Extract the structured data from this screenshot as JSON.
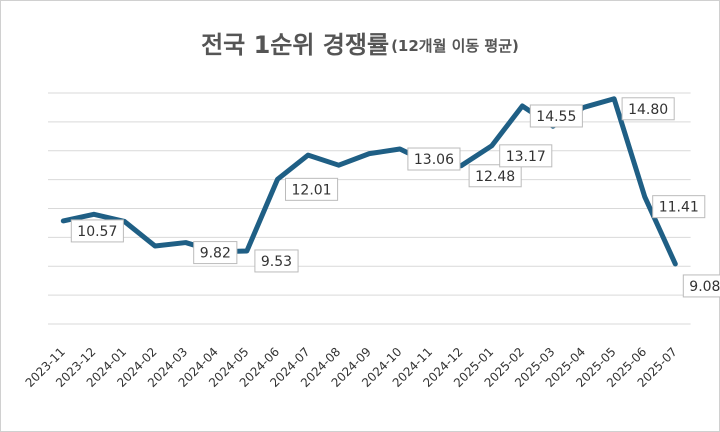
{
  "chart_data": {
    "type": "line",
    "title": "전국 1순위 경쟁률",
    "subtitle": "(12개월 이동 평균)",
    "categories": [
      "2023-11",
      "2023-12",
      "2024-01",
      "2024-02",
      "2024-03",
      "2024-04",
      "2024-05",
      "2024-06",
      "2024-07",
      "2024-08",
      "2024-09",
      "2024-10",
      "2024-11",
      "2024-12",
      "2025-01",
      "2025-02",
      "2025-03",
      "2025-04",
      "2025-05",
      "2025-06",
      "2025-07"
    ],
    "series": [
      {
        "name": "전국 1순위 경쟁률",
        "color": "#1f5f85",
        "values": [
          10.57,
          10.8,
          10.55,
          9.7,
          9.82,
          9.5,
          9.53,
          12.01,
          12.85,
          12.5,
          12.9,
          13.06,
          12.55,
          12.48,
          13.17,
          14.55,
          13.85,
          14.5,
          14.8,
          11.41,
          9.08
        ],
        "value_labels": [
          "10.57",
          null,
          null,
          null,
          "9.82",
          null,
          "9.53",
          "12.01",
          null,
          null,
          null,
          "13.06",
          null,
          "12.48",
          "13.17",
          "14.55",
          null,
          null,
          "14.80",
          "11.41",
          "9.08"
        ]
      }
    ],
    "ylim": [
      7,
      15
    ],
    "yticks": [
      7,
      8,
      9,
      10,
      11,
      12,
      13,
      14,
      15
    ],
    "grid": true
  }
}
